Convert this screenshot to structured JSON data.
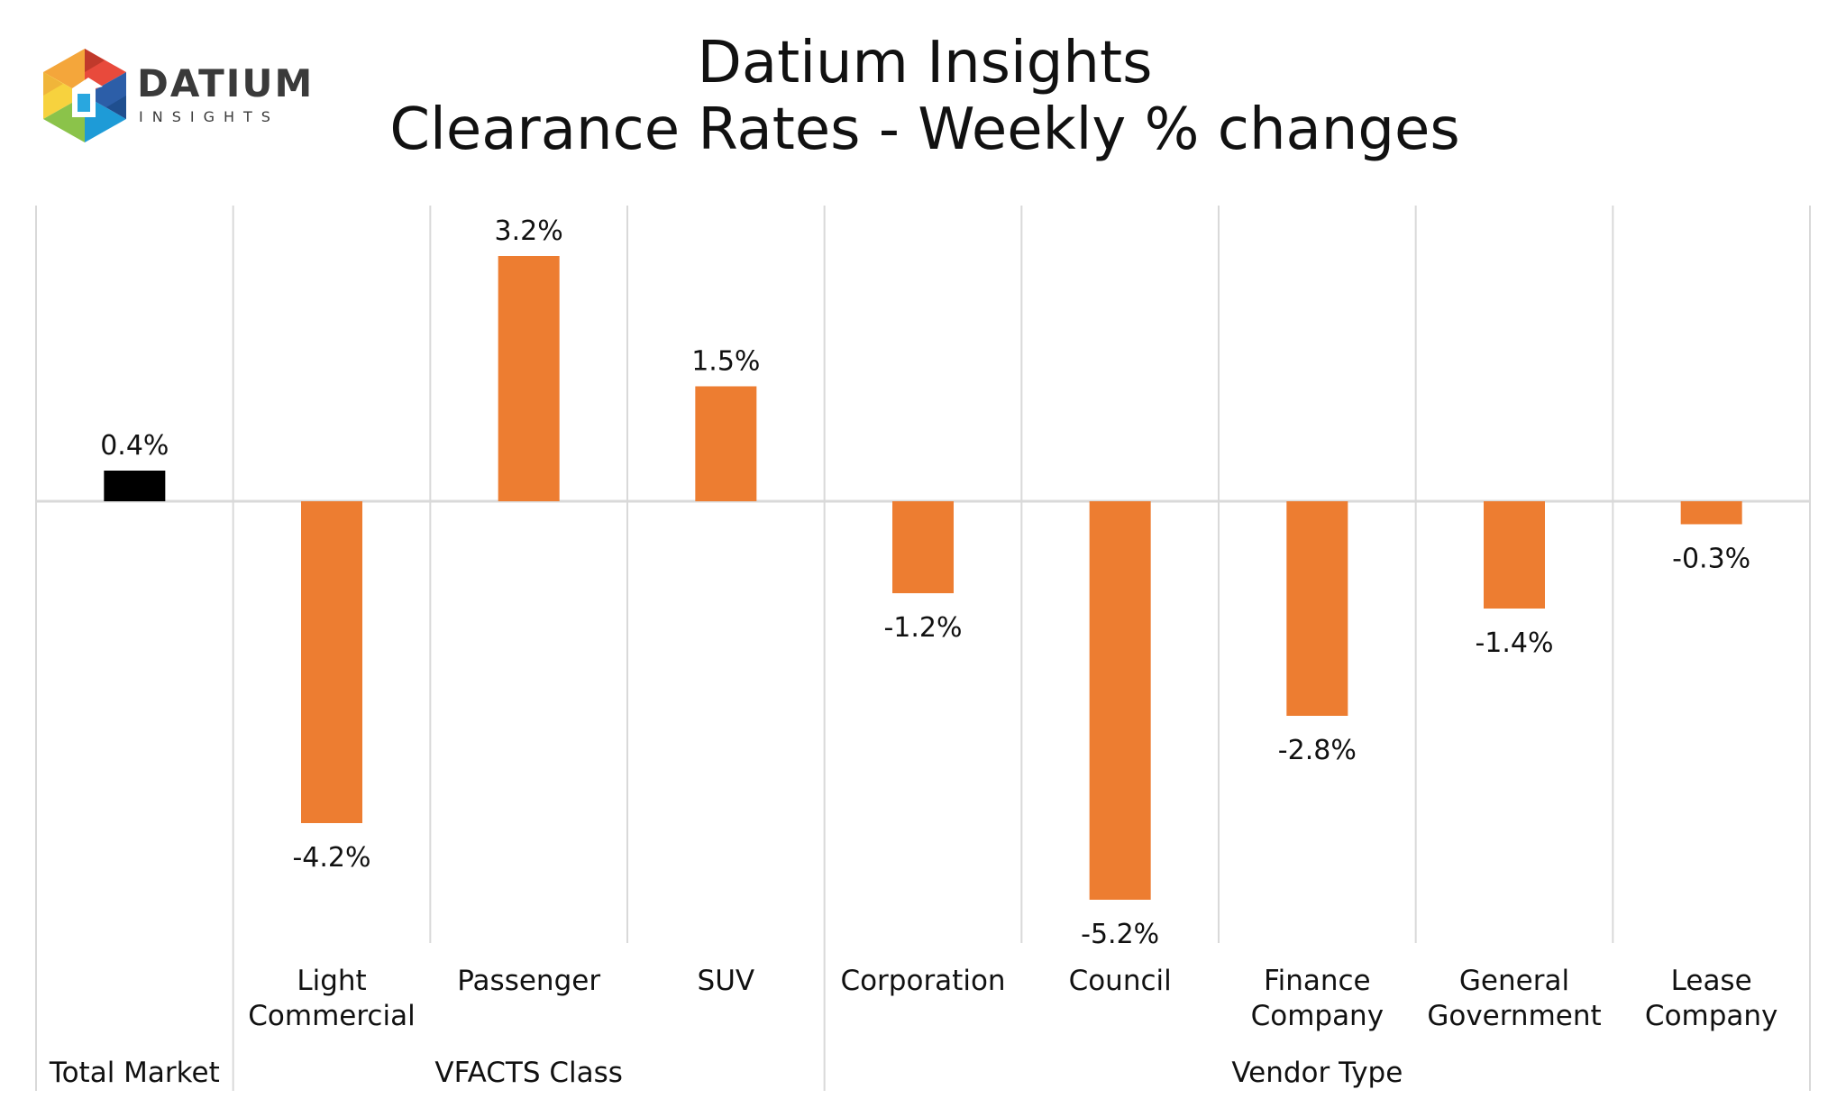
{
  "logo": {
    "name": "DATIUM",
    "tagline": "INSIGHTS"
  },
  "title": {
    "line1": "Datium Insights",
    "line2": "Clearance Rates - Weekly % changes"
  },
  "colors": {
    "highlight_bar": "#000000",
    "bar": "#ED7D31",
    "grid": "#D9D9D9",
    "text": "#111111"
  },
  "chart_data": {
    "type": "bar",
    "title": "Datium Insights\nClearance Rates - Weekly % changes",
    "xlabel": "",
    "ylabel": "",
    "unit": "%",
    "categories": [
      {
        "label": [
          "Total Market"
        ],
        "group": "",
        "value": 0.4,
        "highlight": true
      },
      {
        "label": [
          "Light",
          "Commercial"
        ],
        "group": "VFACTS Class",
        "value": -4.2,
        "highlight": false
      },
      {
        "label": [
          "Passenger"
        ],
        "group": "VFACTS Class",
        "value": 3.2,
        "highlight": false
      },
      {
        "label": [
          "SUV"
        ],
        "group": "VFACTS Class",
        "value": 1.5,
        "highlight": false
      },
      {
        "label": [
          "Corporation"
        ],
        "group": "Vendor Type",
        "value": -1.2,
        "highlight": false
      },
      {
        "label": [
          "Council"
        ],
        "group": "Vendor Type",
        "value": -5.2,
        "highlight": false
      },
      {
        "label": [
          "Finance",
          "Company"
        ],
        "group": "Vendor Type",
        "value": -2.8,
        "highlight": false
      },
      {
        "label": [
          "General",
          "Government"
        ],
        "group": "Vendor Type",
        "value": -1.4,
        "highlight": false
      },
      {
        "label": [
          "Lease",
          "Company"
        ],
        "group": "Vendor Type",
        "value": -0.3,
        "highlight": false
      }
    ],
    "data_labels": [
      "0.4%",
      "-4.2%",
      "3.2%",
      "1.5%",
      "-1.2%",
      "-5.2%",
      "-2.8%",
      "-1.4%",
      "-0.3%"
    ],
    "group_labels": [
      "Total Market",
      "VFACTS Class",
      "Vendor Type"
    ],
    "groups": [
      {
        "label": "Total Market",
        "start": 0,
        "end": 0
      },
      {
        "label": "VFACTS Class",
        "start": 1,
        "end": 3
      },
      {
        "label": "Vendor Type",
        "start": 4,
        "end": 8
      }
    ],
    "ylim": [
      -6.0,
      4.0
    ],
    "grid": true,
    "legend": "none"
  }
}
